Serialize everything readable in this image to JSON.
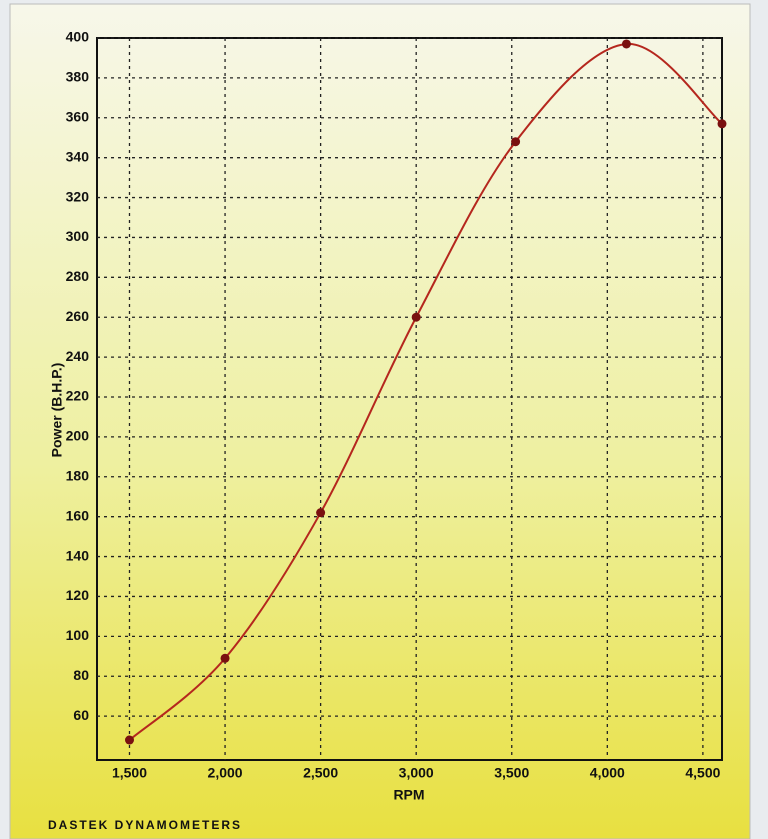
{
  "chart_data": {
    "type": "line",
    "x_label": "RPM",
    "y_label": "Power (B.H.P.)",
    "footer": "DASTEK DYNAMOMETERS",
    "x": [
      1500,
      2000,
      2500,
      3000,
      3520,
      4100,
      4600
    ],
    "series": [
      {
        "color": "#b5271e",
        "values": [
          48,
          89,
          162,
          260,
          348,
          397,
          357
        ]
      }
    ],
    "xlim": [
      1330,
      4600
    ],
    "ylim": [
      38,
      400
    ],
    "xticks": [
      {
        "value": 1500,
        "label": "1,500"
      },
      {
        "value": 2000,
        "label": "2,000"
      },
      {
        "value": 2500,
        "label": "2,500"
      },
      {
        "value": 3000,
        "label": "3,000"
      },
      {
        "value": 3500,
        "label": "3,500"
      },
      {
        "value": 4000,
        "label": "4,000"
      },
      {
        "value": 4500,
        "label": "4,500"
      }
    ],
    "yticks": [
      60,
      80,
      100,
      120,
      140,
      160,
      180,
      200,
      220,
      240,
      260,
      280,
      300,
      320,
      340,
      360,
      380,
      400
    ],
    "grid": true,
    "smooth": true
  }
}
